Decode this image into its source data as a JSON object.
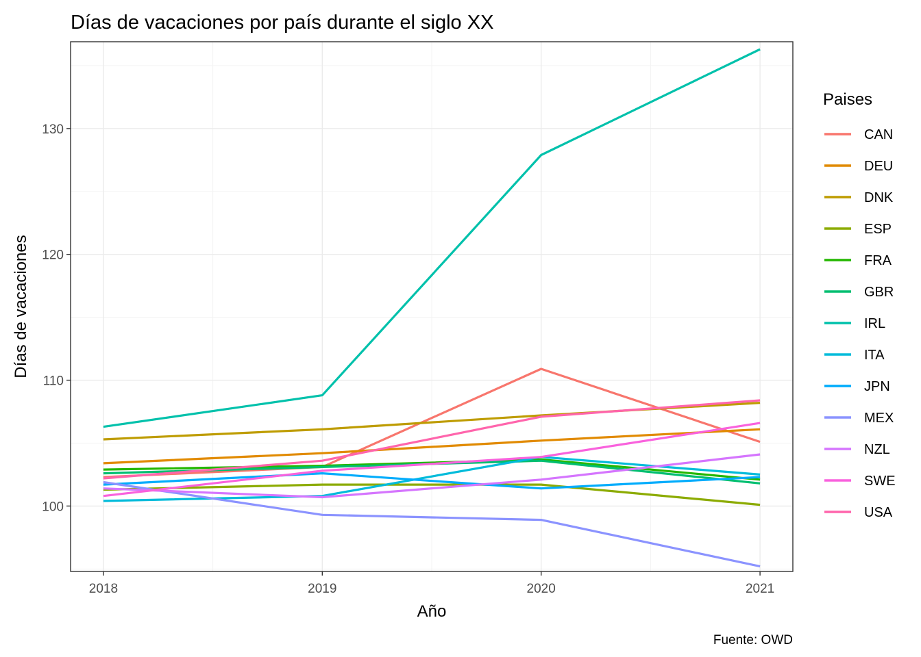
{
  "chart_data": {
    "type": "line",
    "title": "Días de vacaciones por país durante el siglo XX",
    "xlabel": "Año",
    "ylabel": "Días de vacaciones",
    "caption": "Fuente: OWD",
    "legend_title": "Paises",
    "legend_position": "right",
    "grid": true,
    "x": [
      2018,
      2019,
      2020,
      2021
    ],
    "x_tick_labels": [
      "2018",
      "2019",
      "2020",
      "2021"
    ],
    "y_ticks": [
      100,
      110,
      120,
      130
    ],
    "y_tick_labels": [
      "100",
      "110",
      "120",
      "130"
    ],
    "xlim": [
      2017.85,
      2021.15
    ],
    "ylim": [
      94.8,
      136.9
    ],
    "series": [
      {
        "name": "CAN",
        "color": "#F8766D",
        "values": [
          102.3,
          103.1,
          110.9,
          105.1
        ]
      },
      {
        "name": "DEU",
        "color": "#E18A00",
        "values": [
          103.4,
          104.2,
          105.2,
          106.1
        ]
      },
      {
        "name": "DNK",
        "color": "#BE9C00",
        "values": [
          105.3,
          106.1,
          107.2,
          108.2
        ]
      },
      {
        "name": "ESP",
        "color": "#8CAB00",
        "values": [
          101.3,
          101.7,
          101.7,
          100.1
        ]
      },
      {
        "name": "FRA",
        "color": "#24B700",
        "values": [
          102.9,
          103.2,
          103.7,
          102.1
        ]
      },
      {
        "name": "GBR",
        "color": "#00BE70",
        "values": [
          102.6,
          103.1,
          103.6,
          101.8
        ]
      },
      {
        "name": "IRL",
        "color": "#00C1AB",
        "values": [
          106.3,
          108.8,
          127.9,
          136.3
        ]
      },
      {
        "name": "ITA",
        "color": "#00BBDA",
        "values": [
          100.4,
          100.8,
          103.9,
          102.5
        ]
      },
      {
        "name": "JPN",
        "color": "#00ACFC",
        "values": [
          101.7,
          102.6,
          101.4,
          102.3
        ]
      },
      {
        "name": "MEX",
        "color": "#8B93FF",
        "values": [
          101.9,
          99.3,
          98.9,
          95.2
        ]
      },
      {
        "name": "NZL",
        "color": "#D575FE",
        "values": [
          101.4,
          100.7,
          102.1,
          104.1
        ]
      },
      {
        "name": "SWE",
        "color": "#F962DD",
        "values": [
          100.8,
          102.8,
          103.9,
          106.6
        ]
      },
      {
        "name": "USA",
        "color": "#FF65AC",
        "values": [
          102.2,
          103.6,
          107.1,
          108.4
        ]
      }
    ]
  }
}
